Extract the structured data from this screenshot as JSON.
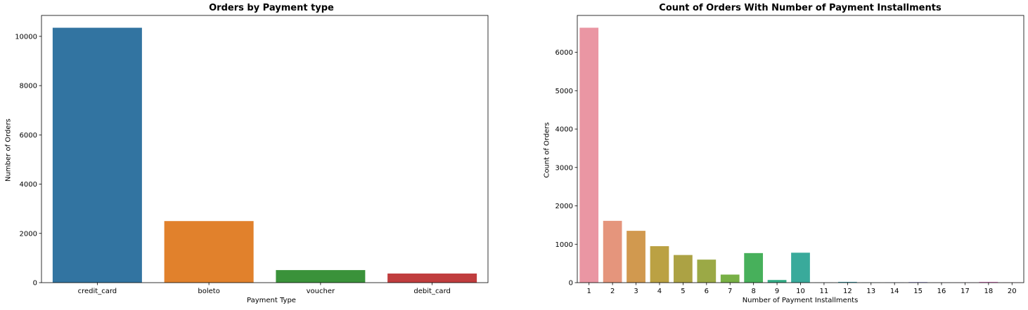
{
  "chart_data": [
    {
      "type": "bar",
      "title": "Orders by Payment type",
      "xlabel": "Payment Type",
      "ylabel": "Number of Orders",
      "categories": [
        "credit_card",
        "boleto",
        "voucher",
        "debit_card"
      ],
      "values": [
        10350,
        2500,
        510,
        370
      ],
      "ylim": [
        0,
        10850
      ],
      "yticks": [
        0,
        2000,
        4000,
        6000,
        8000,
        10000
      ],
      "colors": [
        "#3274a1",
        "#e1812c",
        "#3a923a",
        "#c03d3e"
      ],
      "grid": false
    },
    {
      "type": "bar",
      "title": "Count of Orders With Number of Payment Installments",
      "xlabel": "Number of Payment Installments",
      "ylabel": "Count of Orders",
      "categories": [
        "1",
        "2",
        "3",
        "4",
        "5",
        "6",
        "7",
        "8",
        "9",
        "10",
        "11",
        "12",
        "13",
        "14",
        "15",
        "16",
        "17",
        "18",
        "20"
      ],
      "values": [
        6640,
        1610,
        1350,
        950,
        720,
        600,
        210,
        770,
        70,
        780,
        3,
        20,
        4,
        5,
        15,
        3,
        3,
        20,
        5
      ],
      "ylim": [
        0,
        6960
      ],
      "yticks": [
        0,
        1000,
        2000,
        3000,
        4000,
        5000,
        6000
      ],
      "colors": [
        "#ea96a3",
        "#e5957c",
        "#d1994f",
        "#bba143",
        "#aca244",
        "#9ba946",
        "#78b046",
        "#47b05b",
        "#35ac86",
        "#39aa9b",
        "#3ca8a9",
        "#3ea7b5",
        "#4ca5c9",
        "#77a1e5",
        "#9e99e3",
        "#ba8de6",
        "#d587e0",
        "#e87dca",
        "#e98ab5"
      ],
      "grid": false
    }
  ]
}
